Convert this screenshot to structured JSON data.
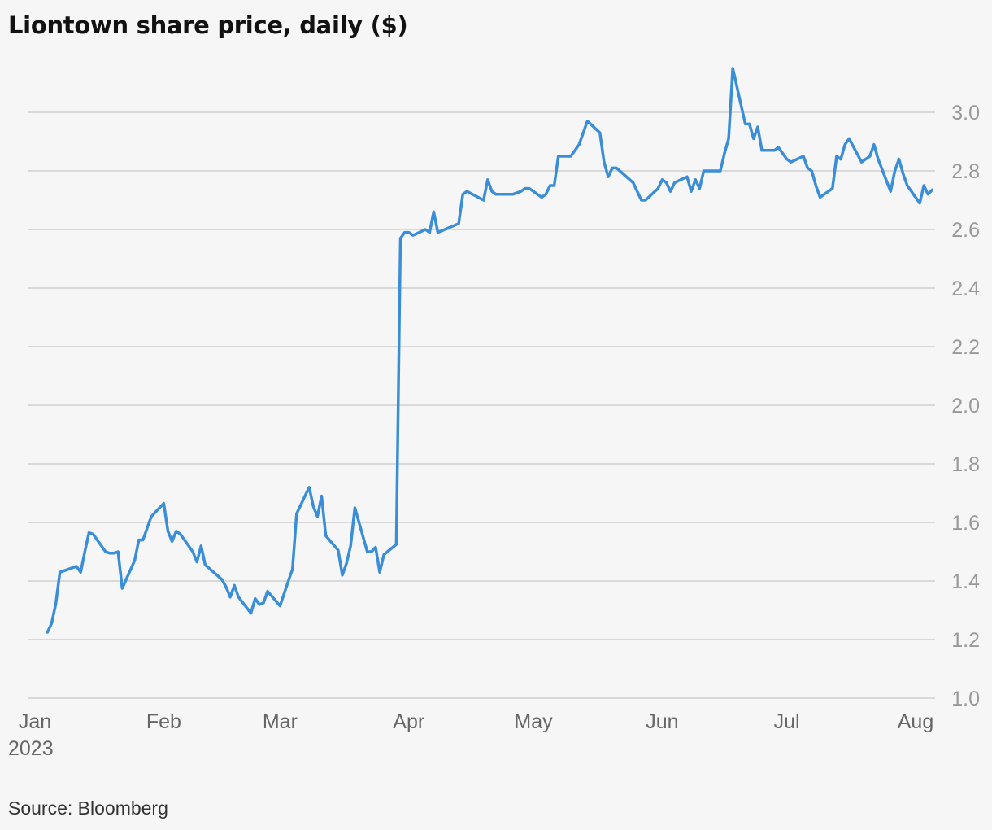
{
  "title": "Liontown share price, daily ($)",
  "source": "Source: Bloomberg",
  "chart_data": {
    "type": "line",
    "title": "Liontown share price, daily ($)",
    "xlabel": "",
    "ylabel": "",
    "ylim": [
      1.0,
      3.0
    ],
    "y_ticks": [
      "1.0",
      "1.2",
      "1.4",
      "1.6",
      "1.8",
      "2.0",
      "2.2",
      "2.4",
      "2.6",
      "2.8",
      "3.0"
    ],
    "x_ticks": [
      {
        "date": "2023-01-01",
        "label": "Jan",
        "sublabel": "2023"
      },
      {
        "date": "2023-02-01",
        "label": "Feb",
        "sublabel": ""
      },
      {
        "date": "2023-03-01",
        "label": "Mar",
        "sublabel": ""
      },
      {
        "date": "2023-04-01",
        "label": "Apr",
        "sublabel": ""
      },
      {
        "date": "2023-05-01",
        "label": "May",
        "sublabel": ""
      },
      {
        "date": "2023-06-01",
        "label": "Jun",
        "sublabel": ""
      },
      {
        "date": "2023-07-01",
        "label": "Jul",
        "sublabel": ""
      },
      {
        "date": "2023-08-01",
        "label": "Aug",
        "sublabel": ""
      }
    ],
    "grid": true,
    "y_axis_side": "right",
    "series": [
      {
        "color": "#3a8ed8",
        "points": [
          [
            "2023-01-04",
            1.225
          ],
          [
            "2023-01-05",
            1.255
          ],
          [
            "2023-01-06",
            1.32
          ],
          [
            "2023-01-07",
            1.43
          ],
          [
            "2023-01-10",
            1.445
          ],
          [
            "2023-01-11",
            1.45
          ],
          [
            "2023-01-12",
            1.43
          ],
          [
            "2023-01-13",
            1.5
          ],
          [
            "2023-01-14",
            1.565
          ],
          [
            "2023-01-15",
            1.56
          ],
          [
            "2023-01-18",
            1.5
          ],
          [
            "2023-01-19",
            1.495
          ],
          [
            "2023-01-20",
            1.495
          ],
          [
            "2023-01-21",
            1.5
          ],
          [
            "2023-01-22",
            1.375
          ],
          [
            "2023-01-25",
            1.47
          ],
          [
            "2023-01-26",
            1.54
          ],
          [
            "2023-01-27",
            1.54
          ],
          [
            "2023-01-29",
            1.62
          ],
          [
            "2023-02-01",
            1.665
          ],
          [
            "2023-02-02",
            1.57
          ],
          [
            "2023-02-03",
            1.535
          ],
          [
            "2023-02-04",
            1.57
          ],
          [
            "2023-02-05",
            1.56
          ],
          [
            "2023-02-08",
            1.5
          ],
          [
            "2023-02-09",
            1.465
          ],
          [
            "2023-02-10",
            1.52
          ],
          [
            "2023-02-11",
            1.455
          ],
          [
            "2023-02-15",
            1.405
          ],
          [
            "2023-02-16",
            1.38
          ],
          [
            "2023-02-17",
            1.345
          ],
          [
            "2023-02-18",
            1.385
          ],
          [
            "2023-02-19",
            1.345
          ],
          [
            "2023-02-22",
            1.29
          ],
          [
            "2023-02-23",
            1.34
          ],
          [
            "2023-02-24",
            1.32
          ],
          [
            "2023-02-25",
            1.325
          ],
          [
            "2023-02-26",
            1.365
          ],
          [
            "2023-03-01",
            1.315
          ],
          [
            "2023-03-03",
            1.4
          ],
          [
            "2023-03-04",
            1.44
          ],
          [
            "2023-03-05",
            1.63
          ],
          [
            "2023-03-08",
            1.72
          ],
          [
            "2023-03-09",
            1.655
          ],
          [
            "2023-03-10",
            1.62
          ],
          [
            "2023-03-11",
            1.69
          ],
          [
            "2023-03-12",
            1.555
          ],
          [
            "2023-03-15",
            1.505
          ],
          [
            "2023-03-16",
            1.42
          ],
          [
            "2023-03-17",
            1.46
          ],
          [
            "2023-03-18",
            1.52
          ],
          [
            "2023-03-19",
            1.65
          ],
          [
            "2023-03-22",
            1.5
          ],
          [
            "2023-03-23",
            1.5
          ],
          [
            "2023-03-24",
            1.515
          ],
          [
            "2023-03-25",
            1.43
          ],
          [
            "2023-03-26",
            1.49
          ],
          [
            "2023-03-29",
            1.525
          ],
          [
            "2023-03-30",
            2.57
          ],
          [
            "2023-03-31",
            2.59
          ],
          [
            "2023-04-01",
            2.59
          ],
          [
            "2023-04-02",
            2.58
          ],
          [
            "2023-04-05",
            2.6
          ],
          [
            "2023-04-06",
            2.59
          ],
          [
            "2023-04-07",
            2.66
          ],
          [
            "2023-04-08",
            2.59
          ],
          [
            "2023-04-13",
            2.62
          ],
          [
            "2023-04-14",
            2.72
          ],
          [
            "2023-04-15",
            2.73
          ],
          [
            "2023-04-19",
            2.7
          ],
          [
            "2023-04-20",
            2.77
          ],
          [
            "2023-04-21",
            2.73
          ],
          [
            "2023-04-22",
            2.72
          ],
          [
            "2023-04-26",
            2.72
          ],
          [
            "2023-04-28",
            2.73
          ],
          [
            "2023-04-29",
            2.74
          ],
          [
            "2023-04-30",
            2.74
          ],
          [
            "2023-05-03",
            2.71
          ],
          [
            "2023-05-04",
            2.72
          ],
          [
            "2023-05-05",
            2.75
          ],
          [
            "2023-05-06",
            2.75
          ],
          [
            "2023-05-07",
            2.85
          ],
          [
            "2023-05-10",
            2.85
          ],
          [
            "2023-05-12",
            2.89
          ],
          [
            "2023-05-14",
            2.97
          ],
          [
            "2023-05-17",
            2.93
          ],
          [
            "2023-05-18",
            2.83
          ],
          [
            "2023-05-19",
            2.78
          ],
          [
            "2023-05-20",
            2.81
          ],
          [
            "2023-05-21",
            2.81
          ],
          [
            "2023-05-25",
            2.76
          ],
          [
            "2023-05-27",
            2.7
          ],
          [
            "2023-05-28",
            2.7
          ],
          [
            "2023-05-31",
            2.74
          ],
          [
            "2023-06-01",
            2.77
          ],
          [
            "2023-06-02",
            2.76
          ],
          [
            "2023-06-03",
            2.73
          ],
          [
            "2023-06-04",
            2.76
          ],
          [
            "2023-06-07",
            2.78
          ],
          [
            "2023-06-08",
            2.73
          ],
          [
            "2023-06-09",
            2.77
          ],
          [
            "2023-06-10",
            2.74
          ],
          [
            "2023-06-11",
            2.8
          ],
          [
            "2023-06-15",
            2.8
          ],
          [
            "2023-06-16",
            2.86
          ],
          [
            "2023-06-17",
            2.91
          ],
          [
            "2023-06-18",
            3.15
          ],
          [
            "2023-06-21",
            2.96
          ],
          [
            "2023-06-22",
            2.96
          ],
          [
            "2023-06-23",
            2.91
          ],
          [
            "2023-06-24",
            2.95
          ],
          [
            "2023-06-25",
            2.87
          ],
          [
            "2023-06-28",
            2.87
          ],
          [
            "2023-06-29",
            2.88
          ],
          [
            "2023-06-30",
            2.86
          ],
          [
            "2023-07-01",
            2.84
          ],
          [
            "2023-07-02",
            2.83
          ],
          [
            "2023-07-05",
            2.85
          ],
          [
            "2023-07-06",
            2.81
          ],
          [
            "2023-07-07",
            2.8
          ],
          [
            "2023-07-08",
            2.75
          ],
          [
            "2023-07-09",
            2.71
          ],
          [
            "2023-07-12",
            2.74
          ],
          [
            "2023-07-13",
            2.85
          ],
          [
            "2023-07-14",
            2.84
          ],
          [
            "2023-07-15",
            2.89
          ],
          [
            "2023-07-16",
            2.91
          ],
          [
            "2023-07-19",
            2.83
          ],
          [
            "2023-07-20",
            2.84
          ],
          [
            "2023-07-21",
            2.85
          ],
          [
            "2023-07-22",
            2.89
          ],
          [
            "2023-07-23",
            2.84
          ],
          [
            "2023-07-26",
            2.73
          ],
          [
            "2023-07-27",
            2.8
          ],
          [
            "2023-07-28",
            2.84
          ],
          [
            "2023-07-29",
            2.79
          ],
          [
            "2023-07-30",
            2.75
          ],
          [
            "2023-08-02",
            2.69
          ],
          [
            "2023-08-03",
            2.75
          ],
          [
            "2023-08-04",
            2.72
          ],
          [
            "2023-08-05",
            2.735
          ]
        ]
      }
    ]
  }
}
